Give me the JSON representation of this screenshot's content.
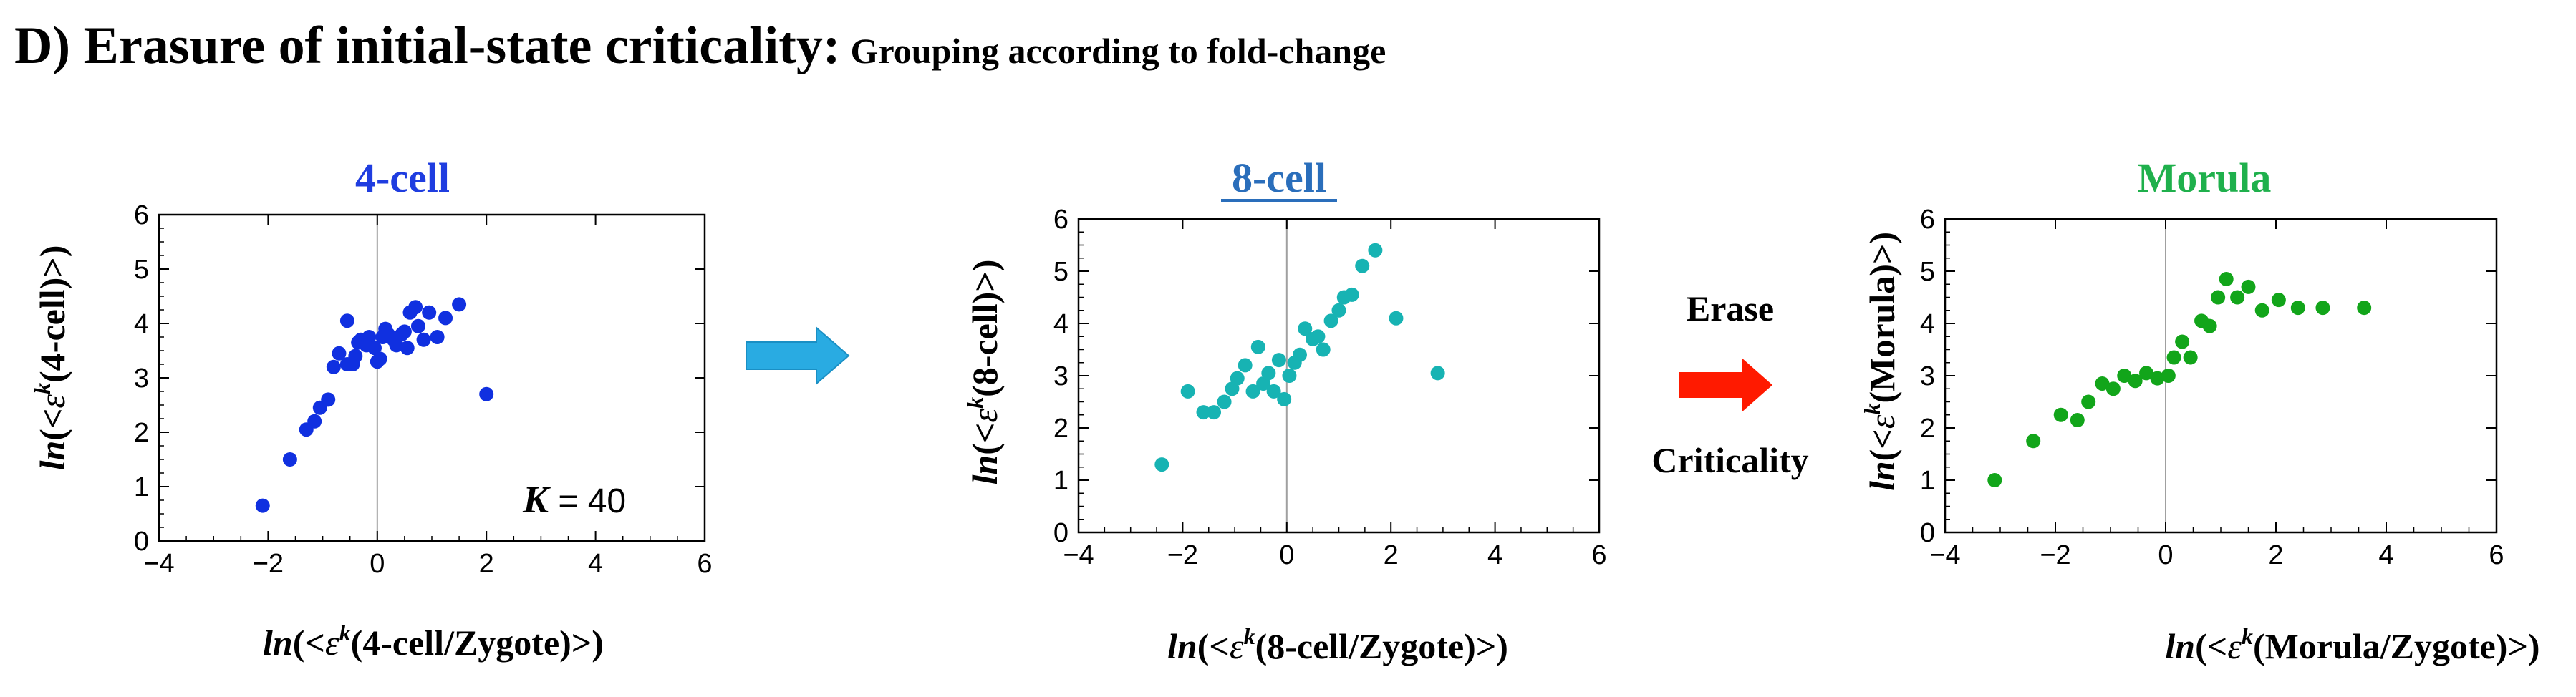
{
  "figure": {
    "title": "D) Erasure of initial-state criticality:",
    "subtitle": "Grouping according to fold-change"
  },
  "arrows": {
    "blue_arrow_color": "#29abe2",
    "red_arrow_color": "#ff1a00",
    "erase_text_top": "Erase",
    "erase_text_bottom": "Criticality"
  },
  "chart_data": [
    {
      "type": "scatter",
      "title": "4-cell",
      "title_color": "#1f3de0",
      "marker_color": "#1030e0",
      "xlabel": {
        "prefix": "ln",
        "open": "(<",
        "eps": "ε",
        "sup": "k",
        "rest": "(4-cell/Zygote)>)"
      },
      "ylabel": {
        "prefix": "ln",
        "open": "(<",
        "eps": "ε",
        "sup": "k",
        "rest": "(4-cell)>)"
      },
      "xlim": [
        -4,
        6
      ],
      "ylim": [
        0,
        6
      ],
      "xticks": [
        "-4",
        "-2",
        "0",
        "2",
        "4",
        "6"
      ],
      "yticks": [
        "0",
        "1",
        "2",
        "3",
        "4",
        "5",
        "6"
      ],
      "annotation": {
        "italic": "K",
        "rest": " = 40"
      },
      "points": [
        [
          -2.1,
          0.65
        ],
        [
          -1.6,
          1.5
        ],
        [
          -1.3,
          2.05
        ],
        [
          -1.15,
          2.2
        ],
        [
          -1.05,
          2.45
        ],
        [
          -0.9,
          2.6
        ],
        [
          -0.8,
          3.2
        ],
        [
          -0.7,
          3.45
        ],
        [
          -0.55,
          3.25
        ],
        [
          -0.55,
          4.05
        ],
        [
          -0.45,
          3.25
        ],
        [
          -0.4,
          3.4
        ],
        [
          -0.35,
          3.65
        ],
        [
          -0.3,
          3.7
        ],
        [
          -0.2,
          3.6
        ],
        [
          -0.15,
          3.75
        ],
        [
          -0.05,
          3.55
        ],
        [
          0.0,
          3.3
        ],
        [
          0.05,
          3.35
        ],
        [
          0.1,
          3.75
        ],
        [
          0.15,
          3.9
        ],
        [
          0.2,
          3.8
        ],
        [
          0.3,
          3.7
        ],
        [
          0.35,
          3.6
        ],
        [
          0.45,
          3.8
        ],
        [
          0.5,
          3.85
        ],
        [
          0.55,
          3.55
        ],
        [
          0.6,
          4.2
        ],
        [
          0.7,
          4.3
        ],
        [
          0.75,
          3.95
        ],
        [
          0.85,
          3.7
        ],
        [
          0.95,
          4.2
        ],
        [
          1.1,
          3.75
        ],
        [
          1.25,
          4.1
        ],
        [
          1.5,
          4.35
        ],
        [
          2.0,
          2.7
        ]
      ]
    },
    {
      "type": "scatter",
      "title": "8-cell",
      "title_color": "#2a6ebb",
      "marker_color": "#17b3b3",
      "xlabel": {
        "prefix": "ln",
        "open": "(<",
        "eps": "ε",
        "sup": "k",
        "rest": "(8-cell/Zygote)>)"
      },
      "ylabel": {
        "prefix": "ln",
        "open": "(<",
        "eps": "ε",
        "sup": "k",
        "rest": "(8-cell)>)"
      },
      "xlim": [
        -4,
        6
      ],
      "ylim": [
        0,
        6
      ],
      "xticks": [
        "-4",
        "-2",
        "0",
        "2",
        "4",
        "6"
      ],
      "yticks": [
        "0",
        "1",
        "2",
        "3",
        "4",
        "5",
        "6"
      ],
      "points": [
        [
          -2.4,
          1.3
        ],
        [
          -1.9,
          2.7
        ],
        [
          -1.6,
          2.3
        ],
        [
          -1.4,
          2.3
        ],
        [
          -1.2,
          2.5
        ],
        [
          -1.05,
          2.75
        ],
        [
          -0.95,
          2.95
        ],
        [
          -0.8,
          3.2
        ],
        [
          -0.65,
          2.7
        ],
        [
          -0.55,
          3.55
        ],
        [
          -0.45,
          2.85
        ],
        [
          -0.35,
          3.05
        ],
        [
          -0.25,
          2.7
        ],
        [
          -0.15,
          3.3
        ],
        [
          -0.05,
          2.55
        ],
        [
          0.05,
          3.0
        ],
        [
          0.15,
          3.25
        ],
        [
          0.25,
          3.4
        ],
        [
          0.35,
          3.9
        ],
        [
          0.5,
          3.7
        ],
        [
          0.6,
          3.75
        ],
        [
          0.7,
          3.5
        ],
        [
          0.85,
          4.05
        ],
        [
          1.0,
          4.25
        ],
        [
          1.1,
          4.5
        ],
        [
          1.25,
          4.55
        ],
        [
          1.45,
          5.1
        ],
        [
          1.7,
          5.4
        ],
        [
          2.1,
          4.1
        ],
        [
          2.9,
          3.05
        ]
      ]
    },
    {
      "type": "scatter",
      "title": "Morula",
      "title_color": "#1fb04c",
      "marker_color": "#12a51a",
      "xlabel": {
        "prefix": "ln",
        "open": "(<",
        "eps": "ε",
        "sup": "k",
        "rest": "(Morula/Zygote)>)"
      },
      "ylabel": {
        "prefix": "ln",
        "open": "(<",
        "eps": "ε",
        "sup": "k",
        "rest": "(Morula)>)"
      },
      "xlim": [
        -4,
        6
      ],
      "ylim": [
        0,
        6
      ],
      "xticks": [
        "-4",
        "-2",
        "0",
        "2",
        "4",
        "6"
      ],
      "yticks": [
        "0",
        "1",
        "2",
        "3",
        "4",
        "5",
        "6"
      ],
      "points": [
        [
          -3.1,
          1.0
        ],
        [
          -2.4,
          1.75
        ],
        [
          -1.9,
          2.25
        ],
        [
          -1.6,
          2.15
        ],
        [
          -1.4,
          2.5
        ],
        [
          -1.15,
          2.85
        ],
        [
          -0.95,
          2.75
        ],
        [
          -0.75,
          3.0
        ],
        [
          -0.55,
          2.9
        ],
        [
          -0.35,
          3.05
        ],
        [
          -0.15,
          2.95
        ],
        [
          0.05,
          3.0
        ],
        [
          0.15,
          3.35
        ],
        [
          0.3,
          3.65
        ],
        [
          0.45,
          3.35
        ],
        [
          0.65,
          4.05
        ],
        [
          0.8,
          3.95
        ],
        [
          0.95,
          4.5
        ],
        [
          1.1,
          4.85
        ],
        [
          1.3,
          4.5
        ],
        [
          1.5,
          4.7
        ],
        [
          1.75,
          4.25
        ],
        [
          2.05,
          4.45
        ],
        [
          2.4,
          4.3
        ],
        [
          2.85,
          4.3
        ],
        [
          3.6,
          4.3
        ]
      ]
    }
  ]
}
